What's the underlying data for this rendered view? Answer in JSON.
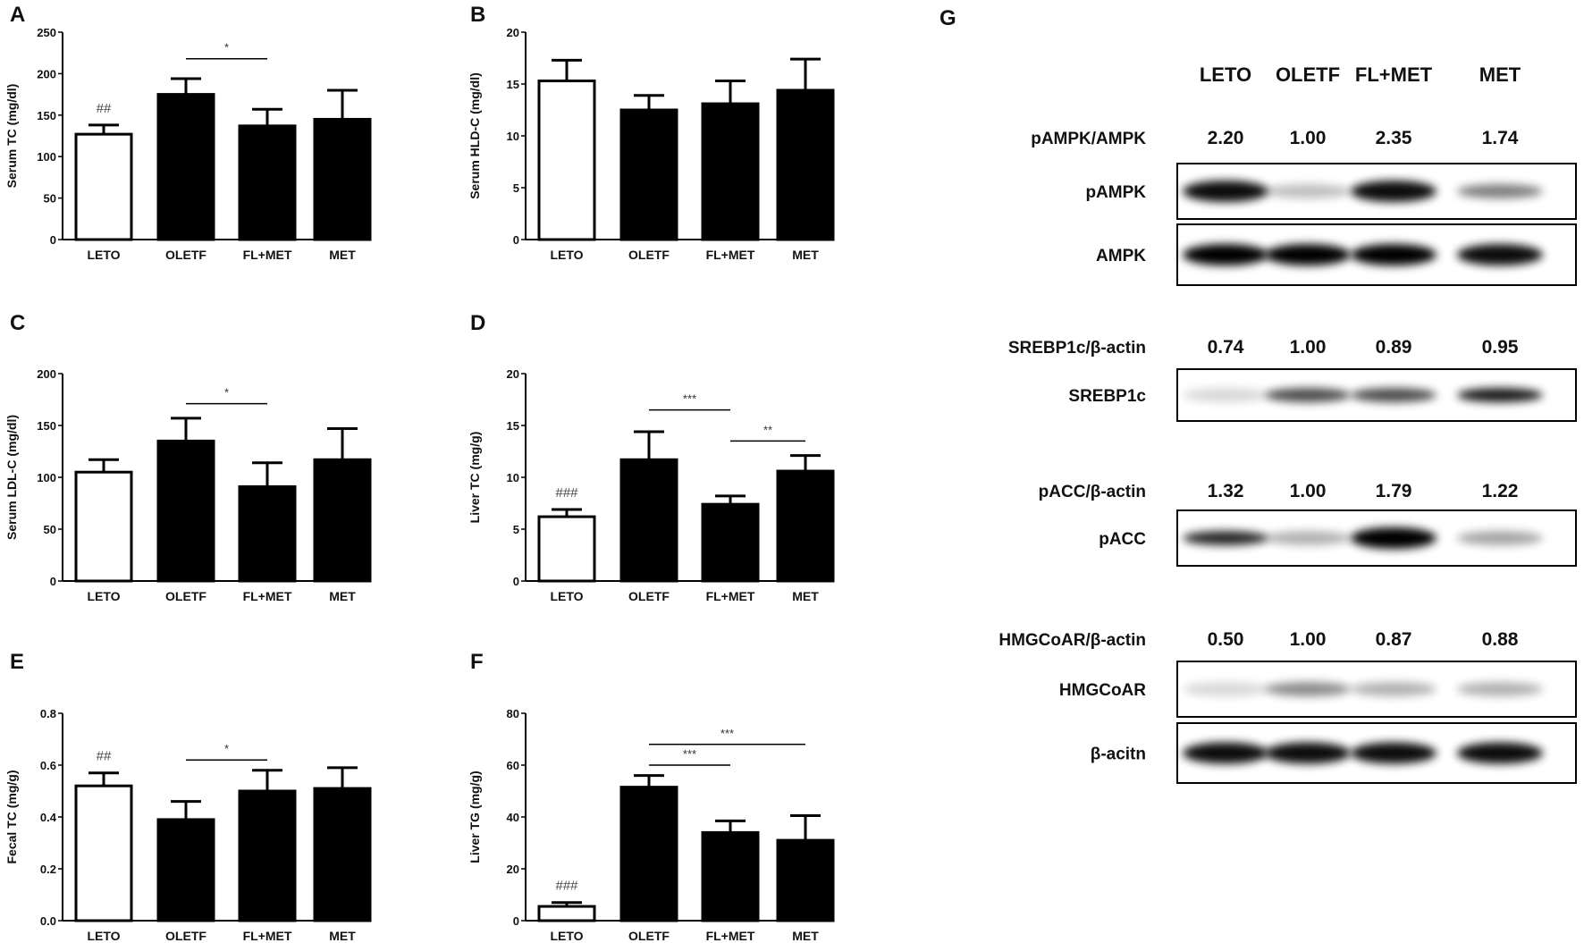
{
  "chart_data": [
    {
      "panel": "A",
      "type": "bar",
      "categories": [
        "LETO",
        "OLETF",
        "FL+MET",
        "MET"
      ],
      "values": [
        127,
        175,
        137,
        145
      ],
      "errors": [
        11,
        19,
        20,
        35
      ],
      "fills": [
        "#ffffff",
        "#000000",
        "#000000",
        "#000000"
      ],
      "ylabel": "Serum  TC (mg/dl)",
      "ylim": [
        0,
        250
      ],
      "yticks": [
        "0",
        "50",
        "100",
        "150",
        "200",
        "250"
      ],
      "markers": [
        {
          "category": "LETO",
          "label": "##"
        }
      ],
      "significance": [
        {
          "from": "OLETF",
          "to": "FL+MET",
          "y": 218,
          "label": "*"
        }
      ]
    },
    {
      "panel": "B",
      "type": "bar",
      "categories": [
        "LETO",
        "OLETF",
        "FL+MET",
        "MET"
      ],
      "values": [
        15.3,
        12.5,
        13.1,
        14.4
      ],
      "errors": [
        2.0,
        1.4,
        2.2,
        3.0
      ],
      "fills": [
        "#ffffff",
        "#000000",
        "#000000",
        "#000000"
      ],
      "ylabel": "Serum HLD-C (mg/dl)",
      "ylim": [
        0,
        20
      ],
      "yticks": [
        "0",
        "5",
        "10",
        "15",
        "20"
      ],
      "markers": [],
      "significance": []
    },
    {
      "panel": "C",
      "type": "bar",
      "categories": [
        "LETO",
        "OLETF",
        "FL+MET",
        "MET"
      ],
      "values": [
        105,
        135,
        91,
        117
      ],
      "errors": [
        12,
        22,
        23,
        30
      ],
      "fills": [
        "#ffffff",
        "#000000",
        "#000000",
        "#000000"
      ],
      "ylabel": "Serum LDL-C  (mg/dl)",
      "ylim": [
        0,
        200
      ],
      "yticks": [
        "0",
        "50",
        "100",
        "150",
        "200"
      ],
      "markers": [],
      "significance": [
        {
          "from": "OLETF",
          "to": "FL+MET",
          "y": 171,
          "label": "*"
        }
      ]
    },
    {
      "panel": "D",
      "type": "bar",
      "categories": [
        "LETO",
        "OLETF",
        "FL+MET",
        "MET"
      ],
      "values": [
        6.2,
        11.7,
        7.4,
        10.6
      ],
      "errors": [
        0.7,
        2.7,
        0.8,
        1.5
      ],
      "fills": [
        "#ffffff",
        "#000000",
        "#000000",
        "#000000"
      ],
      "ylabel": "Liver TC  (mg/g)",
      "ylim": [
        0,
        20
      ],
      "yticks": [
        "0",
        "5",
        "10",
        "15",
        "20"
      ],
      "markers": [
        {
          "category": "LETO",
          "label": "###"
        }
      ],
      "significance": [
        {
          "from": "OLETF",
          "to": "FL+MET",
          "y": 16.5,
          "label": "***"
        },
        {
          "from": "FL+MET",
          "to": "MET",
          "y": 13.5,
          "label": "**"
        }
      ]
    },
    {
      "panel": "E",
      "type": "bar",
      "categories": [
        "LETO",
        "OLETF",
        "FL+MET",
        "MET"
      ],
      "values": [
        0.52,
        0.39,
        0.5,
        0.51
      ],
      "errors": [
        0.05,
        0.07,
        0.08,
        0.08
      ],
      "fills": [
        "#ffffff",
        "#000000",
        "#000000",
        "#000000"
      ],
      "ylabel": "Fecal TC  (mg/g)",
      "ylim": [
        0,
        0.8
      ],
      "yticks": [
        "0.0",
        "0.2",
        "0.4",
        "0.6",
        "0.8"
      ],
      "markers": [
        {
          "category": "LETO",
          "label": "##"
        }
      ],
      "significance": [
        {
          "from": "OLETF",
          "to": "FL+MET",
          "y": 0.62,
          "label": "*"
        }
      ]
    },
    {
      "panel": "F",
      "type": "bar",
      "categories": [
        "LETO",
        "OLETF",
        "FL+MET",
        "MET"
      ],
      "values": [
        5.5,
        51.5,
        34,
        31
      ],
      "errors": [
        1.5,
        4.5,
        4.5,
        9.5
      ],
      "fills": [
        "#ffffff",
        "#000000",
        "#000000",
        "#000000"
      ],
      "ylabel": "Liver TG (mg/g)",
      "ylim": [
        0,
        80
      ],
      "yticks": [
        "0",
        "20",
        "40",
        "60",
        "80"
      ],
      "markers": [
        {
          "category": "LETO",
          "label": "###"
        }
      ],
      "significance": [
        {
          "from": "OLETF",
          "to": "FL+MET",
          "y": 60,
          "label": "***"
        },
        {
          "from": "OLETF",
          "to": "MET",
          "y": 68,
          "label": "***"
        }
      ]
    }
  ],
  "blot": {
    "panel": "G",
    "lanes": [
      "LETO",
      "OLETF",
      "FL+MET",
      "MET"
    ],
    "groups": [
      {
        "ratio_label": "pAMPK/AMPK",
        "ratios": [
          "2.20",
          "1.00",
          "2.35",
          "1.74"
        ],
        "bands": [
          "pAMPK",
          "AMPK"
        ]
      },
      {
        "ratio_label": "SREBP1c/β-actin",
        "ratios": [
          "0.74",
          "1.00",
          "0.89",
          "0.95"
        ],
        "bands": [
          "SREBP1c"
        ]
      },
      {
        "ratio_label": "pACC/β-actin",
        "ratios": [
          "1.32",
          "1.00",
          "1.79",
          "1.22"
        ],
        "bands": [
          "pACC"
        ]
      },
      {
        "ratio_label": "HMGCoAR/β-actin",
        "ratios": [
          "0.50",
          "1.00",
          "0.87",
          "0.88"
        ],
        "bands": [
          "HMGCoAR",
          "β-acitn"
        ]
      }
    ]
  }
}
